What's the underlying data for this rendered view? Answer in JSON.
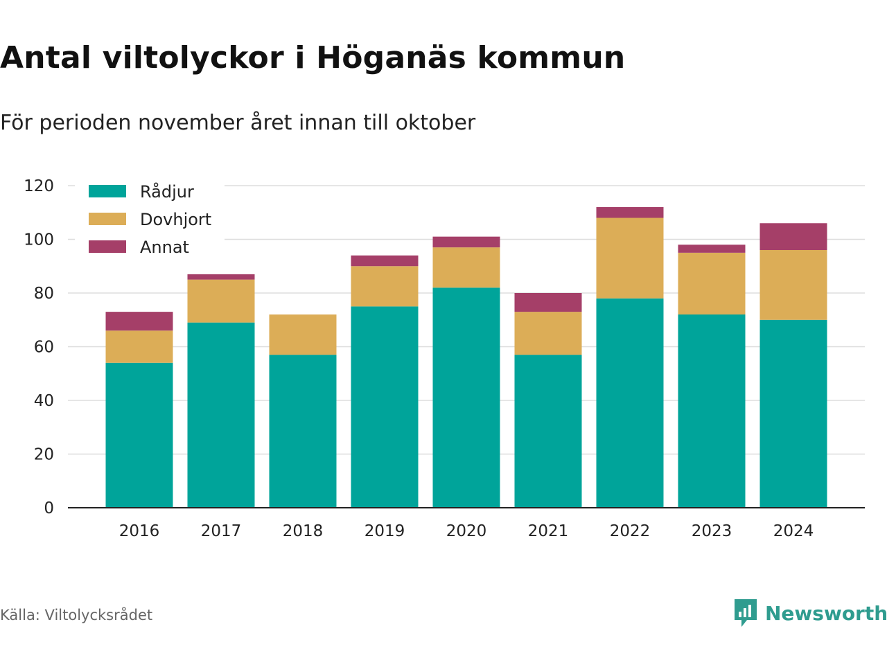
{
  "title": "Antal viltolyckor i Höganäs kommun",
  "subtitle": "För perioden november året innan till oktober",
  "source": "Källa: Viltolycksrådet",
  "brand": {
    "name": "Newsworthy",
    "logo_icon": "newsworthy-logo-icon",
    "color": "#2f9c8f"
  },
  "chart_data": {
    "type": "bar",
    "stacked": true,
    "categories": [
      "2016",
      "2017",
      "2018",
      "2019",
      "2020",
      "2021",
      "2022",
      "2023",
      "2024"
    ],
    "series": [
      {
        "name": "Rådjur",
        "color": "#00a49a",
        "values": [
          54,
          69,
          57,
          75,
          82,
          57,
          78,
          72,
          70
        ]
      },
      {
        "name": "Dovhjort",
        "color": "#dcad57",
        "values": [
          12,
          16,
          15,
          15,
          15,
          16,
          30,
          23,
          26
        ]
      },
      {
        "name": "Annat",
        "color": "#a53f68",
        "values": [
          7,
          2,
          0,
          4,
          4,
          7,
          4,
          3,
          10
        ]
      }
    ],
    "ylim": [
      0,
      120
    ],
    "yticks": [
      "0",
      "20",
      "40",
      "60",
      "80",
      "100",
      "120"
    ],
    "xlabel": "",
    "ylabel": "",
    "grid": true,
    "legend_position": "top-left"
  }
}
